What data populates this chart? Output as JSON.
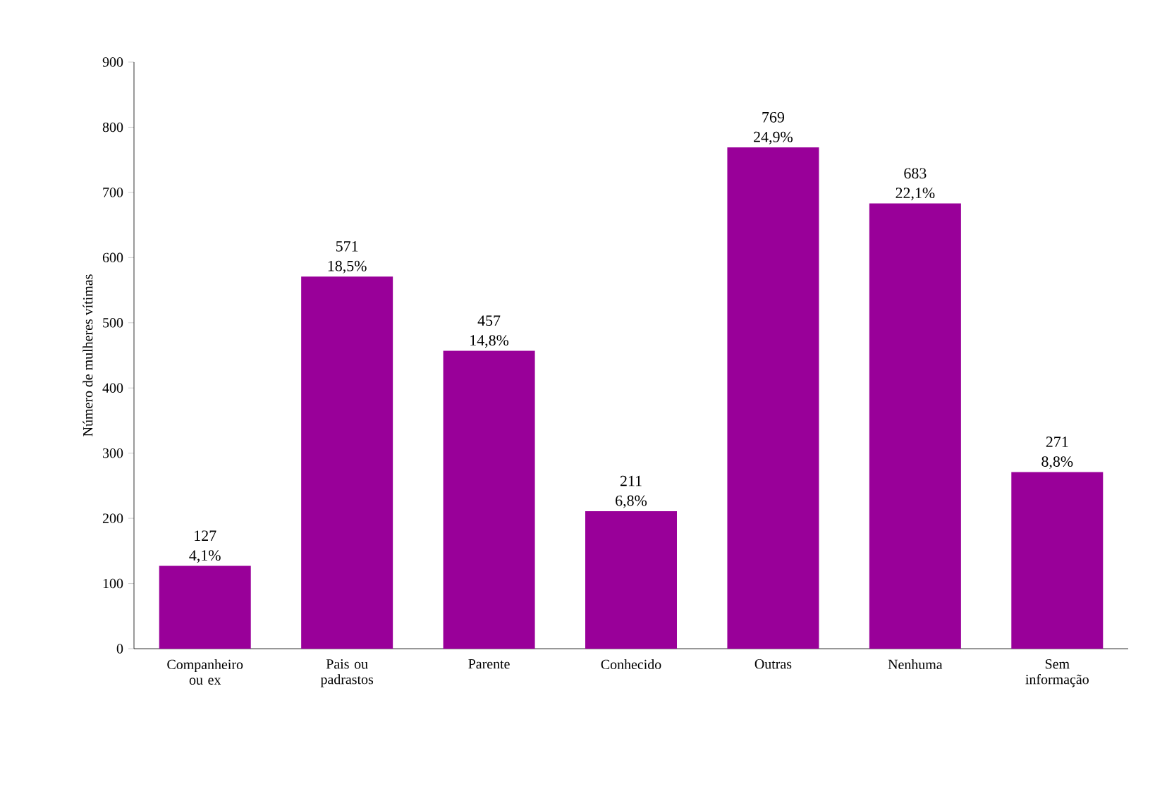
{
  "chart_data": {
    "type": "bar",
    "ylabel": "Número de mulheres vítimas",
    "categories": [
      "Companheiro ou ex",
      "Pais ou padrastos",
      "Parente",
      "Conhecido",
      "Outras",
      "Nenhuma",
      "Sem informação"
    ],
    "values": [
      127,
      571,
      457,
      211,
      769,
      683,
      271
    ],
    "value_labels": [
      "127 4,1%",
      "571 18,5%",
      "457 14,8%",
      "211 6,8%",
      "769 24,9%",
      "683 22,1%",
      "271 8,8%"
    ],
    "color": "#990099",
    "ylim": [
      0,
      900
    ],
    "yticks": [
      0,
      100,
      200,
      300,
      400,
      500,
      600,
      700,
      800,
      900
    ],
    "grid": false
  }
}
